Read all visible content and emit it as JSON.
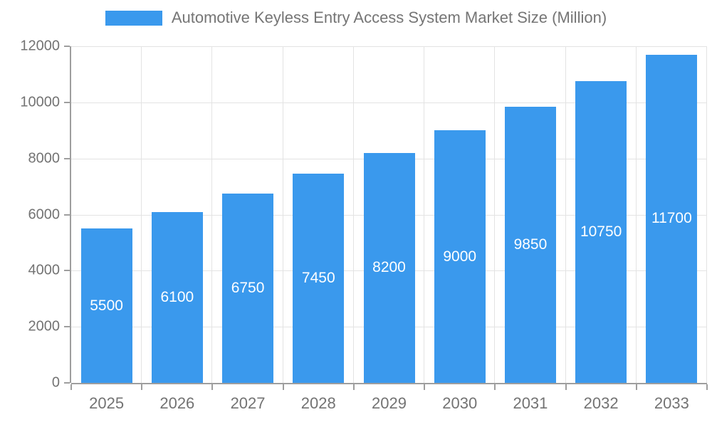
{
  "chart_data": {
    "type": "bar",
    "title": "Automotive Keyless Entry Access System Market Size (Million)",
    "legend": {
      "position": "top",
      "entries": [
        {
          "label": "Automotive Keyless Entry Access System Market Size (Million)",
          "swatch_color": "#3A99ED"
        }
      ]
    },
    "categories": [
      "2025",
      "2026",
      "2027",
      "2028",
      "2029",
      "2030",
      "2031",
      "2032",
      "2033"
    ],
    "series": [
      {
        "name": "Automotive Keyless Entry Access System Market Size (Million)",
        "values": [
          5500,
          6100,
          6750,
          7450,
          8200,
          9000,
          9850,
          10750,
          11700
        ]
      }
    ],
    "bar_value_labels": [
      "5500",
      "6100",
      "6750",
      "7450",
      "8200",
      "9000",
      "9850",
      "10750",
      "11700"
    ],
    "xlabel": "",
    "ylabel": "",
    "ylim": [
      0,
      12000
    ],
    "yticks": [
      0,
      2000,
      4000,
      6000,
      8000,
      10000,
      12000
    ],
    "grid": "on",
    "colors": {
      "bar": "#3A99ED",
      "bar_label_text": "#FFFFFF",
      "axis_text": "#737373",
      "legend_text": "#757575",
      "axis_line": "#9E9E9E",
      "tick_mark": "#9E9E9E",
      "gridline": "#E3E3E3",
      "background": "#FFFFFF"
    }
  }
}
